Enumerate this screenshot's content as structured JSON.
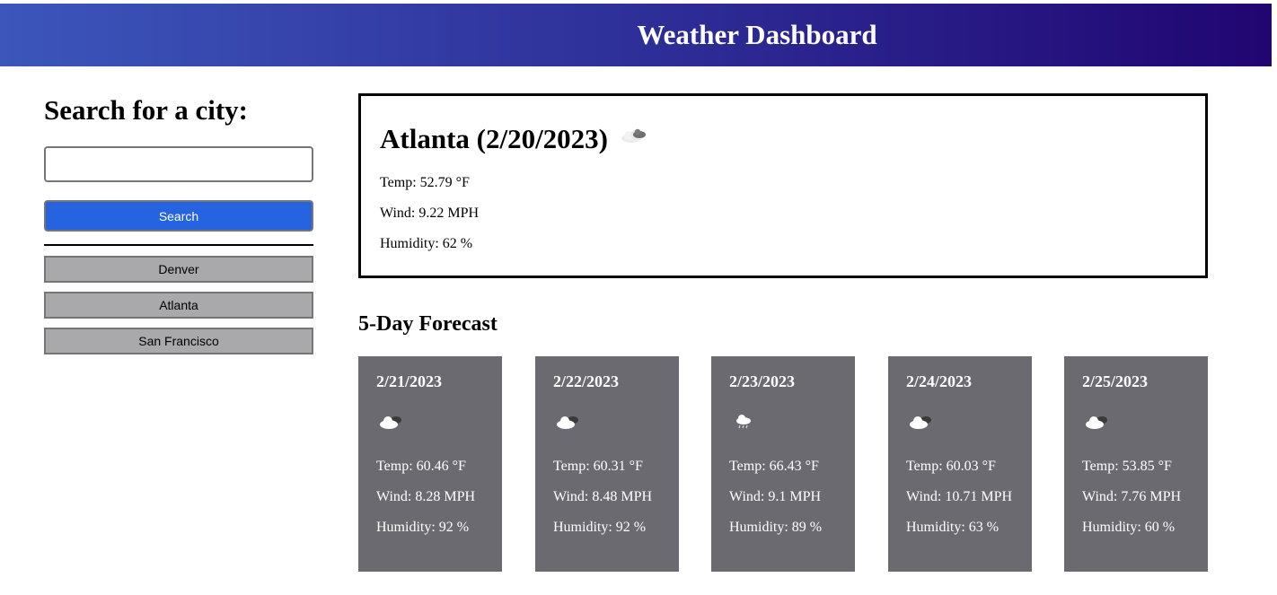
{
  "header": {
    "title": "Weather Dashboard"
  },
  "sidebar": {
    "heading": "Search for a city:",
    "search_value": "",
    "search_button_label": "Search",
    "history": [
      "Denver",
      "Atlanta",
      "San Francisco"
    ]
  },
  "current": {
    "title": "Atlanta (2/20/2023)",
    "icon": "broken-clouds-icon",
    "temp": "Temp: 52.79 °F",
    "wind": "Wind: 9.22 MPH",
    "humidity": "Humidity: 62 %"
  },
  "forecast": {
    "heading": "5-Day Forecast",
    "days": [
      {
        "date": "2/21/2023",
        "icon": "cloud-icon",
        "temp": "Temp: 60.46 °F",
        "wind": "Wind: 8.28 MPH",
        "humidity": "Humidity: 92 %"
      },
      {
        "date": "2/22/2023",
        "icon": "cloud-icon",
        "temp": "Temp: 60.31 °F",
        "wind": "Wind: 8.48 MPH",
        "humidity": "Humidity: 92 %"
      },
      {
        "date": "2/23/2023",
        "icon": "rain-icon",
        "temp": "Temp: 66.43 °F",
        "wind": "Wind: 9.1 MPH",
        "humidity": "Humidity: 89 %"
      },
      {
        "date": "2/24/2023",
        "icon": "cloud-icon",
        "temp": "Temp: 60.03 °F",
        "wind": "Wind: 10.71 MPH",
        "humidity": "Humidity: 63 %"
      },
      {
        "date": "2/25/2023",
        "icon": "cloud-icon",
        "temp": "Temp: 53.85 °F",
        "wind": "Wind: 7.76 MPH",
        "humidity": "Humidity: 60 %"
      }
    ]
  },
  "colors": {
    "header_start": "#3c56bb",
    "header_end": "#210571",
    "search_button": "#2563e0",
    "history_button": "#a9a8aa",
    "forecast_card": "#6b6a70"
  }
}
